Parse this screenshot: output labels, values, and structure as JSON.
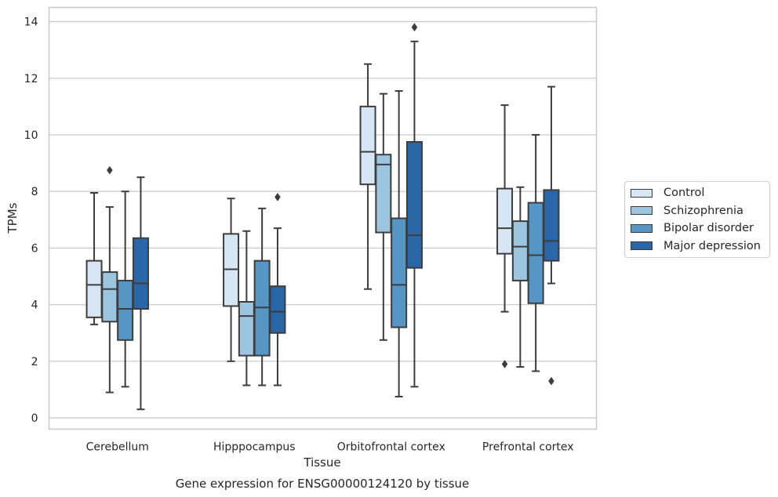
{
  "chart_data": {
    "type": "box",
    "title": "Gene expression for ENSG00000124120 by tissue",
    "xlabel": "Tissue",
    "ylabel": "TPMs",
    "ylim": [
      -0.4,
      14.5
    ],
    "yticks": [
      "0",
      "2",
      "4",
      "6",
      "8",
      "10",
      "12",
      "14"
    ],
    "grid": true,
    "legend_position": "right",
    "categories": [
      "Cerebellum",
      "Hipppocampus",
      "Orbitofrontal cortex",
      "Prefrontal cortex"
    ],
    "series": [
      {
        "name": "Control",
        "color": "#d6e6f4",
        "boxes": [
          {
            "whisker_low": 3.3,
            "q1": 3.55,
            "median": 4.7,
            "q3": 5.55,
            "whisker_high": 7.95,
            "outliers": []
          },
          {
            "whisker_low": 2.0,
            "q1": 3.95,
            "median": 5.25,
            "q3": 6.5,
            "whisker_high": 7.75,
            "outliers": []
          },
          {
            "whisker_low": 4.55,
            "q1": 8.25,
            "median": 9.4,
            "q3": 11.0,
            "whisker_high": 12.5,
            "outliers": []
          },
          {
            "whisker_low": 3.75,
            "q1": 5.8,
            "median": 6.7,
            "q3": 8.1,
            "whisker_high": 11.05,
            "outliers": [
              1.9
            ]
          }
        ]
      },
      {
        "name": "Schizophrenia",
        "color": "#9cc5df",
        "boxes": [
          {
            "whisker_low": 0.9,
            "q1": 3.4,
            "median": 4.55,
            "q3": 5.15,
            "whisker_high": 7.45,
            "outliers": [
              8.75
            ]
          },
          {
            "whisker_low": 1.15,
            "q1": 2.2,
            "median": 3.6,
            "q3": 4.1,
            "whisker_high": 6.6,
            "outliers": []
          },
          {
            "whisker_low": 2.75,
            "q1": 6.55,
            "median": 8.95,
            "q3": 9.3,
            "whisker_high": 11.45,
            "outliers": []
          },
          {
            "whisker_low": 1.8,
            "q1": 4.85,
            "median": 6.05,
            "q3": 6.95,
            "whisker_high": 8.15,
            "outliers": []
          }
        ]
      },
      {
        "name": "Bipolar disorder",
        "color": "#5696c5",
        "boxes": [
          {
            "whisker_low": 1.1,
            "q1": 2.75,
            "median": 3.85,
            "q3": 4.85,
            "whisker_high": 8.0,
            "outliers": []
          },
          {
            "whisker_low": 1.15,
            "q1": 2.2,
            "median": 3.9,
            "q3": 5.55,
            "whisker_high": 7.4,
            "outliers": []
          },
          {
            "whisker_low": 0.75,
            "q1": 3.2,
            "median": 4.7,
            "q3": 7.05,
            "whisker_high": 11.55,
            "outliers": []
          },
          {
            "whisker_low": 1.65,
            "q1": 4.05,
            "median": 5.75,
            "q3": 7.6,
            "whisker_high": 10.0,
            "outliers": []
          }
        ]
      },
      {
        "name": "Major depression",
        "color": "#2a67a8",
        "boxes": [
          {
            "whisker_low": 0.3,
            "q1": 3.85,
            "median": 4.75,
            "q3": 6.35,
            "whisker_high": 8.5,
            "outliers": []
          },
          {
            "whisker_low": 1.15,
            "q1": 3.0,
            "median": 3.75,
            "q3": 4.65,
            "whisker_high": 6.7,
            "outliers": [
              7.8
            ]
          },
          {
            "whisker_low": 1.1,
            "q1": 5.3,
            "median": 6.45,
            "q3": 9.75,
            "whisker_high": 13.3,
            "outliers": [
              13.8
            ]
          },
          {
            "whisker_low": 4.75,
            "q1": 5.55,
            "median": 6.25,
            "q3": 8.05,
            "whisker_high": 11.7,
            "outliers": [
              1.3
            ]
          }
        ]
      }
    ]
  }
}
